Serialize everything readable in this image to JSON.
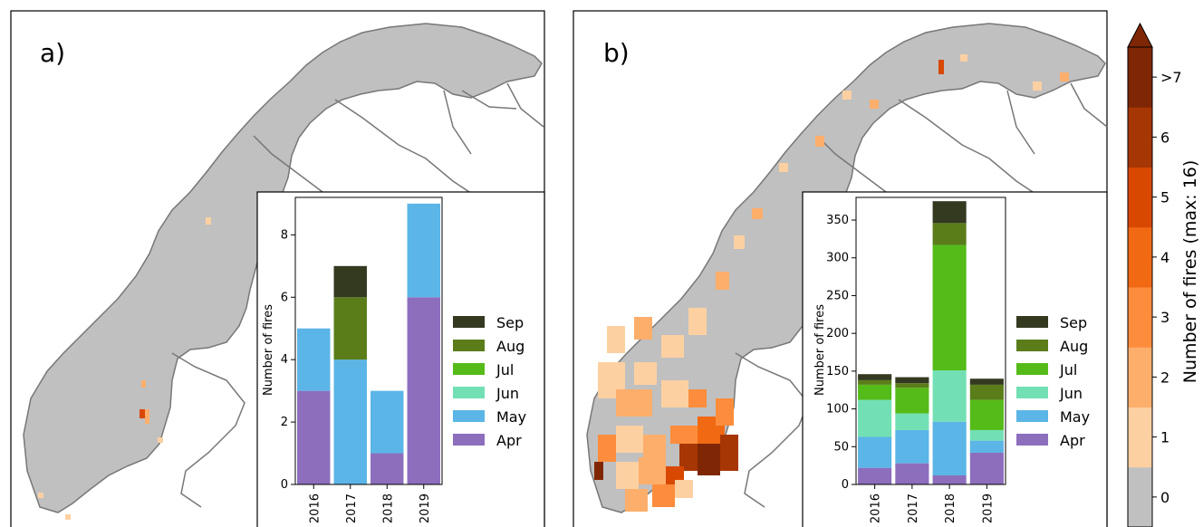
{
  "panels": [
    {
      "label": "a)"
    },
    {
      "label": "b)"
    }
  ],
  "colorbar": {
    "label": "Number of fires (max: 16)",
    "ticks": [
      "0",
      "1",
      "2",
      "3",
      "4",
      "5",
      "6",
      ">7"
    ],
    "colors": [
      "#c0c0c0",
      "#fdd0a2",
      "#fdae6b",
      "#fd8d3c",
      "#f16913",
      "#d94801",
      "#a63603",
      "#7f2704"
    ]
  },
  "colors": {
    "land": "#c0c0c0",
    "coast": "#7a7a7a"
  },
  "chart_data": [
    {
      "type": "bar",
      "stacked": true,
      "categories": [
        "2016",
        "2017",
        "2018",
        "2019"
      ],
      "ylabel": "Number of fires",
      "ylim": [
        0,
        9.2
      ],
      "yticks": [
        0,
        2,
        4,
        6,
        8
      ],
      "series": [
        {
          "name": "Apr",
          "color": "#8c6ebd",
          "values": [
            3,
            0,
            1,
            6
          ]
        },
        {
          "name": "May",
          "color": "#5bb5e6",
          "values": [
            2,
            4,
            2,
            3
          ]
        },
        {
          "name": "Jun",
          "color": "#72e0b4",
          "values": [
            0,
            0,
            0,
            0
          ]
        },
        {
          "name": "Jul",
          "color": "#55bb18",
          "values": [
            0,
            0,
            0,
            0
          ]
        },
        {
          "name": "Aug",
          "color": "#5a7d1a",
          "values": [
            0,
            2,
            0,
            0
          ]
        },
        {
          "name": "Sep",
          "color": "#333a20",
          "values": [
            0,
            1,
            0,
            0
          ]
        }
      ]
    },
    {
      "type": "bar",
      "stacked": true,
      "categories": [
        "2016",
        "2017",
        "2018",
        "2019"
      ],
      "ylabel": "Number of fires",
      "ylim": [
        0,
        380
      ],
      "yticks": [
        0,
        50,
        100,
        150,
        200,
        250,
        300,
        350
      ],
      "series": [
        {
          "name": "Apr",
          "color": "#8c6ebd",
          "values": [
            22,
            28,
            12,
            42
          ]
        },
        {
          "name": "May",
          "color": "#5bb5e6",
          "values": [
            41,
            44,
            71,
            16
          ]
        },
        {
          "name": "Jun",
          "color": "#72e0b4",
          "values": [
            49,
            22,
            68,
            14
          ]
        },
        {
          "name": "Jul",
          "color": "#55bb18",
          "values": [
            20,
            34,
            166,
            40
          ]
        },
        {
          "name": "Aug",
          "color": "#5a7d1a",
          "values": [
            6,
            6,
            29,
            20
          ]
        },
        {
          "name": "Sep",
          "color": "#333a20",
          "values": [
            8,
            8,
            29,
            8
          ]
        }
      ]
    }
  ]
}
